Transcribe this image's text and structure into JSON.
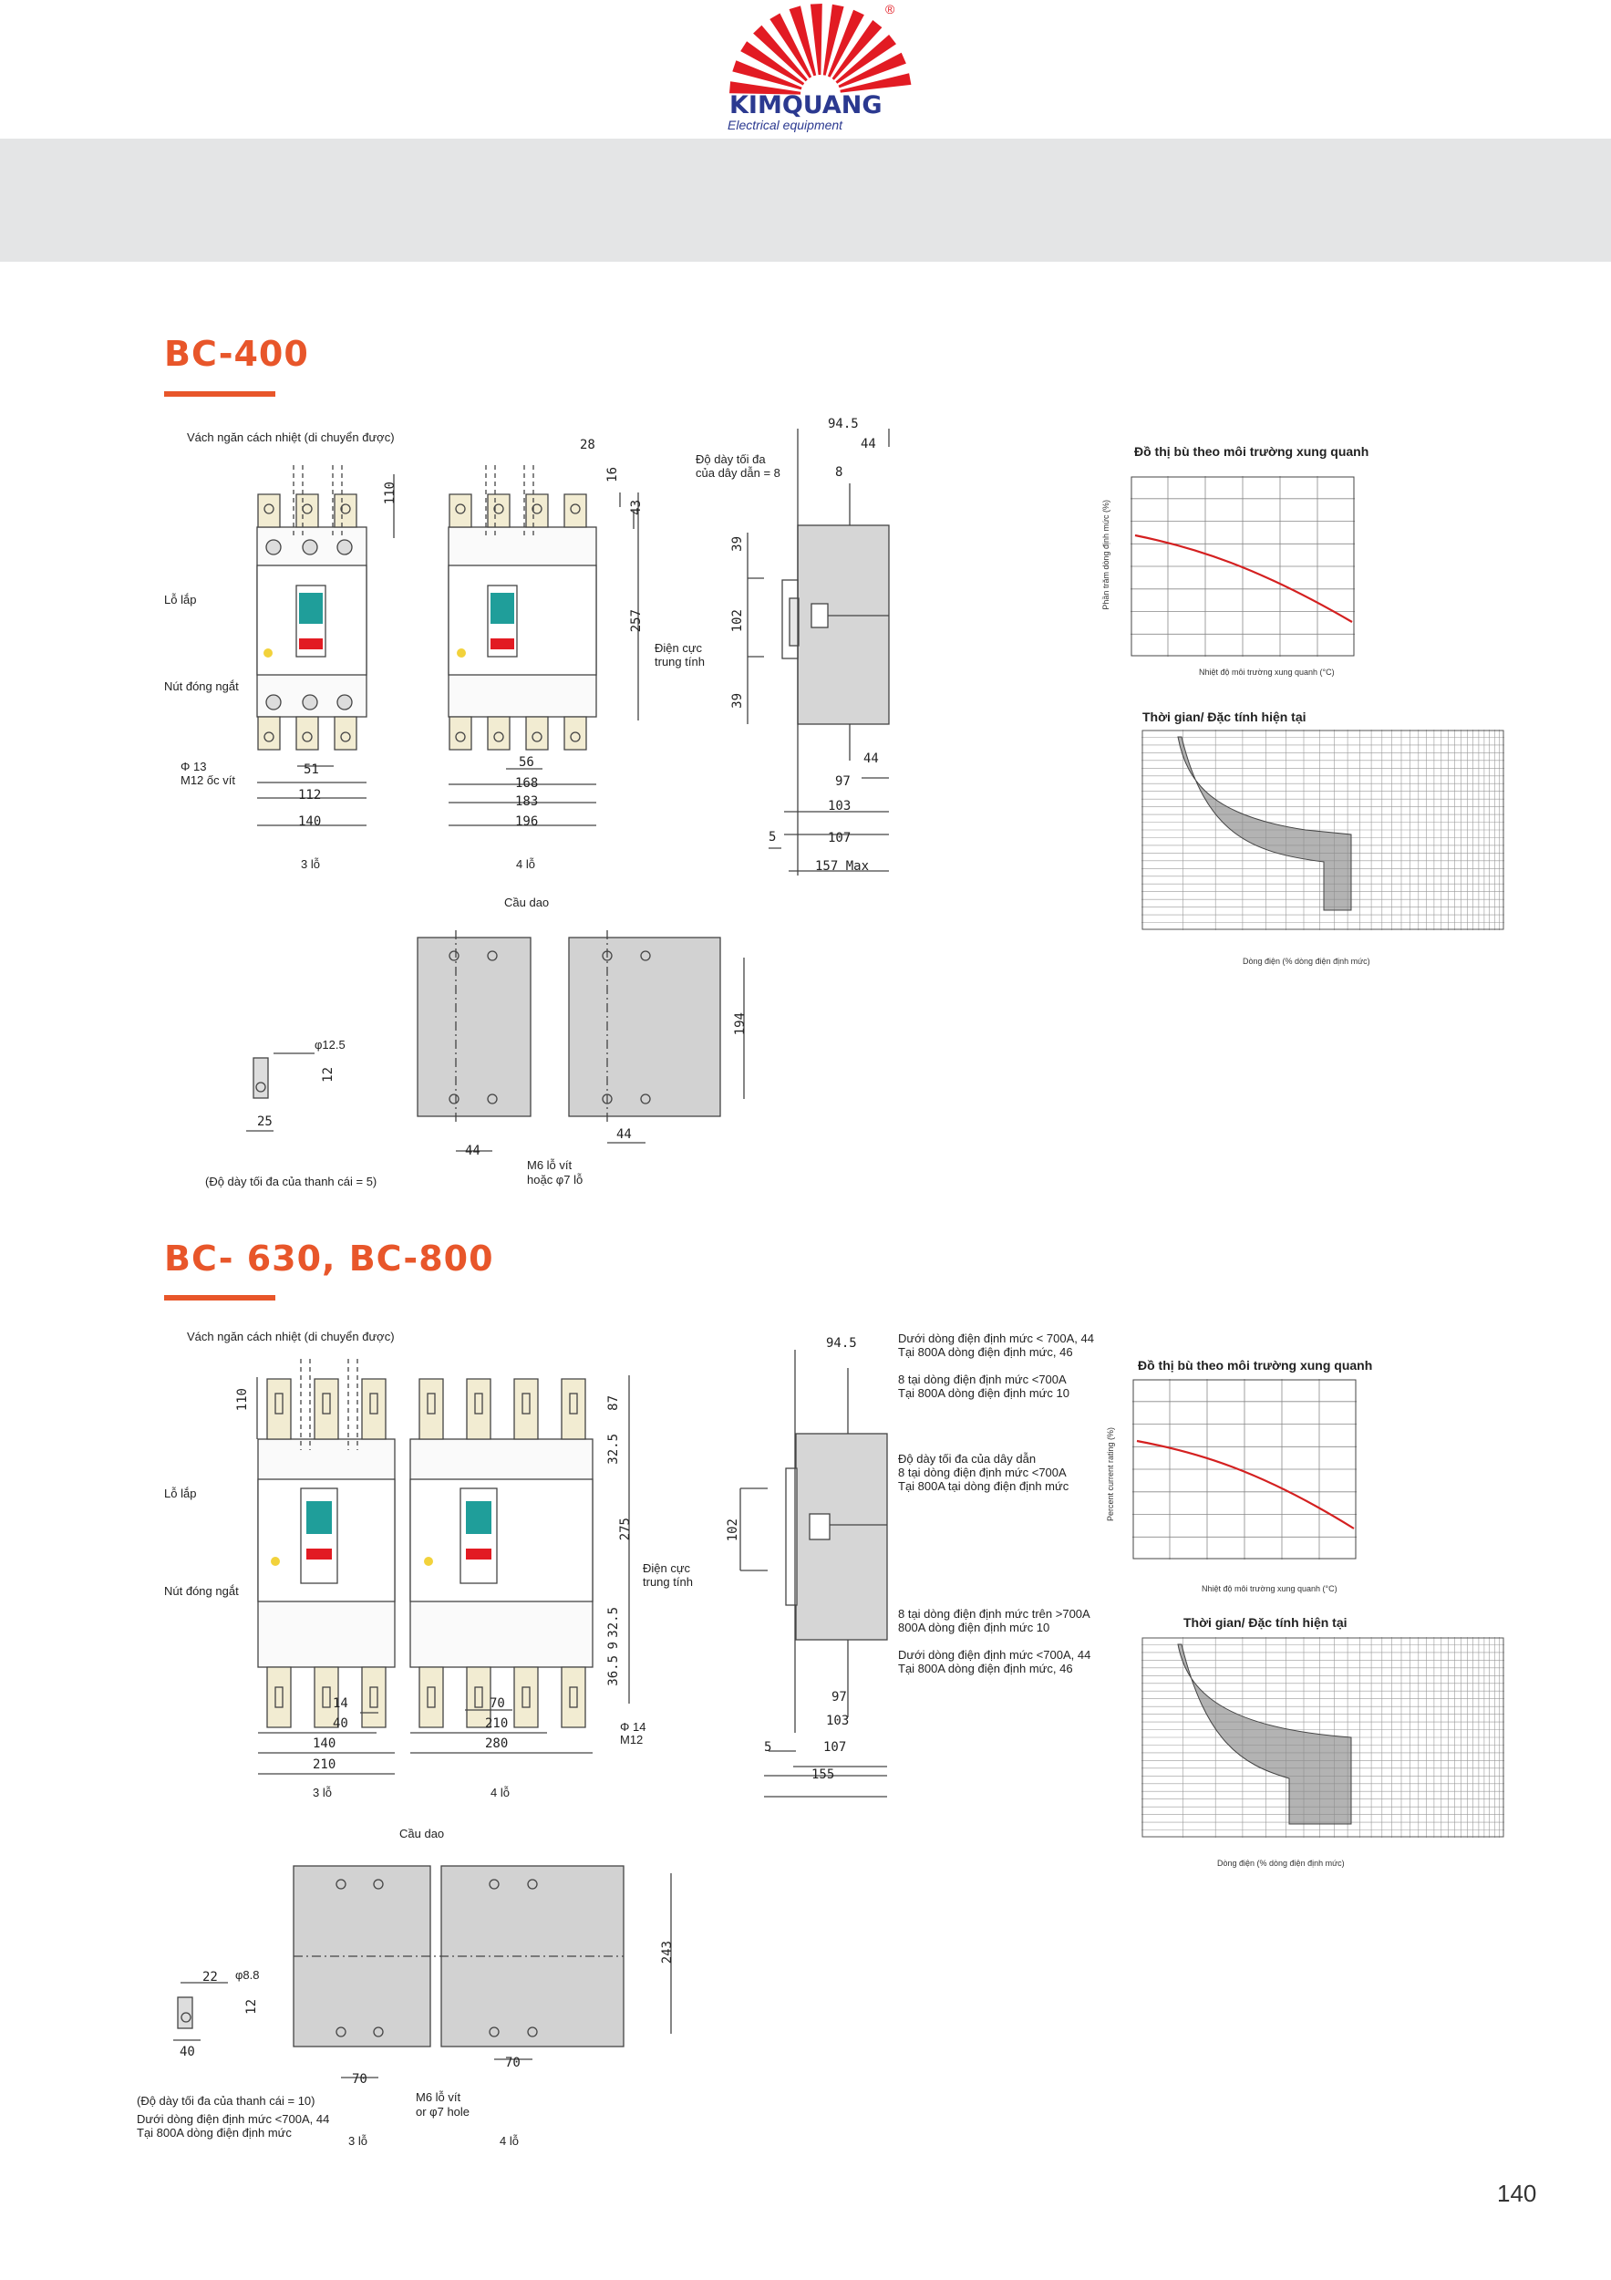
{
  "header": {
    "brand": "KIMQUANG",
    "tagline": "Electrical equipment",
    "registered": "®"
  },
  "colors": {
    "accent": "#e8562a",
    "brand_blue": "#2b3990",
    "logo_red": "#e21b23",
    "curve": "#d42020"
  },
  "section1": {
    "title": "BC-400",
    "labels": {
      "insulation": "Vách ngăn cách nhiệt (di chuyển được)",
      "mounting_hole": "Lỗ lắp",
      "trip_button": "Nút đóng ngắt",
      "phi13": "Φ 13",
      "m12": "M12 ốc vít",
      "center": "Điện cực trung tính",
      "max_wire": "Độ dày tối đa của dây dẫn = 8",
      "poles3": "3 lỗ",
      "poles4": "4 lỗ",
      "breaker": "Cầu dao",
      "phi125": "φ12.5",
      "busbar": "(Độ dày tối đa của thanh cái = 5)",
      "m6": "M6 lỗ vít",
      "phi7": "hoặc φ7 lỗ"
    },
    "dims": {
      "d110": "110",
      "d28": "28",
      "d16": "16",
      "d43": "43",
      "d257": "257",
      "d51": "51",
      "d112": "112",
      "d140": "140",
      "d56": "56",
      "d168": "168",
      "d183": "183",
      "d196": "196",
      "d945": "94.5",
      "d44a": "44",
      "d8": "8",
      "d39a": "39",
      "d102": "102",
      "d39b": "39",
      "d44b": "44",
      "d97": "97",
      "d103": "103",
      "d107": "107",
      "d5": "5",
      "d157": "157 Max",
      "d12": "12",
      "d25": "25",
      "d44c": "44",
      "d44d": "44",
      "d194": "194"
    },
    "chart_ambient": {
      "title": "Đồ thị bù theo môi trường xung quanh",
      "ylabel": "Phần trăm dòng định mức (%)",
      "xlabel": "Nhiệt độ môi trường xung quanh (°C)"
    },
    "chart_trip": {
      "title": "Thời gian/ Đặc tính hiện tại",
      "xlabel": "Dòng điện (% dòng điện định mức)"
    }
  },
  "section2": {
    "title": "BC- 630, BC-800",
    "labels": {
      "insulation": "Vách ngăn cách nhiệt (di chuyển được)",
      "mounting_hole": "Lỗ lắp",
      "trip_button": "Nút đóng ngắt",
      "center": "Điện cực trung tính",
      "phi14": "Φ 14",
      "m12": "M12",
      "poles3": "3 lỗ",
      "poles4": "4 lỗ",
      "note1a": "Dưới dòng điện định mức < 700A, 44",
      "note1b": "Tại 800A dòng điện định mức, 46",
      "note2a": "8 tại dòng điện định mức <700A",
      "note2b": "Tại 800A dòng điện định mức 10",
      "note3a": "Độ dày tối đa của dây dẫn",
      "note3b": "8 tại dòng điện định mức <700A",
      "note3c": "Tại 800A tại dòng điện định mức",
      "note4a": "8 tại dòng điện định mức trên >700A",
      "note4b": "800A dòng điện định mức 10",
      "note5a": "Dưới dòng điện định mức <700A, 44",
      "note5b": "Tại 800A dòng điện định mức, 46",
      "breaker": "Cầu dao",
      "phi88": "φ8.8",
      "busbar": "(Độ dày tối đa của thanh cái = 10)",
      "bnote1": "Dưới dòng điện định mức <700A, 44",
      "bnote2": "Tại 800A dòng điện định mức",
      "m6": "M6 lỗ vít",
      "phi7": "or φ7 hole"
    },
    "dims": {
      "d110": "110",
      "d87": "87",
      "d325a": "32.5",
      "d275": "275",
      "d325b": "32.5",
      "d9": "9",
      "d365": "36.5",
      "d14": "14",
      "d40": "40",
      "d140": "140",
      "d210a": "210",
      "d70": "70",
      "d210b": "210",
      "d280": "280",
      "d945": "94.5",
      "d102": "102",
      "d97": "97",
      "d103": "103",
      "d107": "107",
      "d5": "5",
      "d155": "155",
      "d22": "22",
      "d12": "12",
      "d40b": "40",
      "d70b": "70",
      "d70c": "70",
      "d243": "243"
    },
    "chart_ambient": {
      "title": "Đồ thị bù theo môi trường xung quanh",
      "ylabel": "Percent current rating (%)",
      "xlabel": "Nhiệt độ môi trường xung quanh (°C)"
    },
    "chart_trip": {
      "title": "Thời gian/ Đặc tính hiện tại",
      "xlabel": "Dòng điện (% dòng điện định mức)"
    }
  },
  "footer": {
    "page_number": "140"
  }
}
